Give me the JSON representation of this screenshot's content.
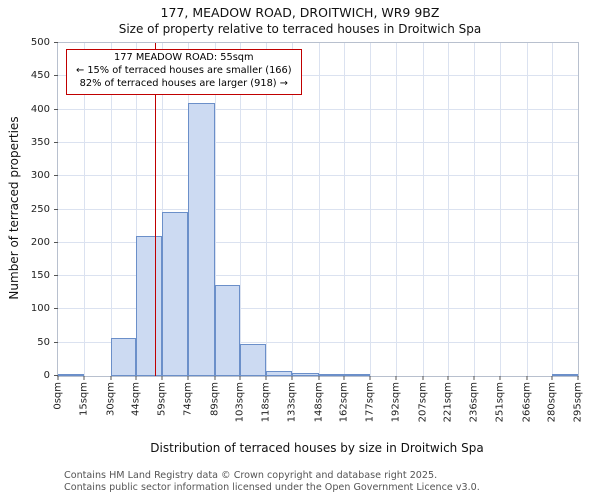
{
  "annotation": {
    "line1": "177 MEADOW ROAD: 55sqm",
    "line2": "← 15% of terraced houses are smaller (166)",
    "line3": "82% of terraced houses are larger (918) →"
  },
  "footer": {
    "line1": "Contains HM Land Registry data © Crown copyright and database right 2025.",
    "line2": "Contains public sector information licensed under the Open Government Licence v3.0."
  },
  "chart_data": {
    "type": "bar",
    "title": "177, MEADOW ROAD, DROITWICH, WR9 9BZ",
    "subtitle": "Size of property relative to terraced houses in Droitwich Spa",
    "xlabel": "Distribution of terraced houses by size in Droitwich Spa",
    "ylabel": "Number of terraced properties",
    "bin_edges": [
      0,
      15,
      30,
      44,
      59,
      74,
      89,
      103,
      118,
      133,
      148,
      162,
      177,
      192,
      207,
      221,
      236,
      251,
      266,
      280,
      295
    ],
    "x_tick_labels": [
      "0sqm",
      "15sqm",
      "30sqm",
      "44sqm",
      "59sqm",
      "74sqm",
      "89sqm",
      "103sqm",
      "118sqm",
      "133sqm",
      "148sqm",
      "162sqm",
      "177sqm",
      "192sqm",
      "207sqm",
      "221sqm",
      "236sqm",
      "251sqm",
      "266sqm",
      "280sqm",
      "295sqm"
    ],
    "values": [
      2,
      0,
      57,
      210,
      247,
      410,
      137,
      48,
      8,
      5,
      3,
      2,
      0,
      0,
      0,
      0,
      0,
      0,
      0,
      2
    ],
    "ylim": [
      0,
      500
    ],
    "yticks": [
      0,
      50,
      100,
      150,
      200,
      250,
      300,
      350,
      400,
      450,
      500
    ],
    "grid": true,
    "legend": "none",
    "marker": {
      "label": "177 MEADOW ROAD",
      "value_sqm": 55
    },
    "colors": {
      "bar_fill": "#ccdaf2",
      "bar_border": "#6b8fc9",
      "marker": "#c00000",
      "grid": "#dbe2f0"
    }
  }
}
